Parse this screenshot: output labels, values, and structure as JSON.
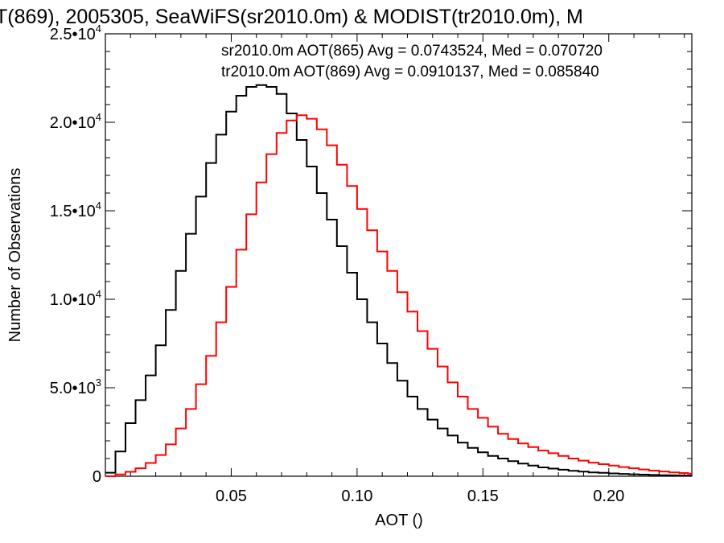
{
  "chart_data": {
    "type": "line",
    "title": "T(869), 2005305, SeaWiFS(sr2010.0m) & MODIST(tr2010.0m), M",
    "xlabel": "AOT ()",
    "ylabel": "Number of Observations",
    "xlim": [
      0.0,
      0.233
    ],
    "ylim": [
      0,
      25000
    ],
    "x_ticks": [
      "0.05",
      "0.10",
      "0.15",
      "0.20"
    ],
    "x_tick_values": [
      0.05,
      0.1,
      0.15,
      0.2
    ],
    "y_ticks": [
      {
        "value": 0,
        "mantissa": "0",
        "exponent": ""
      },
      {
        "value": 5000,
        "mantissa": "5.0•10",
        "exponent": "3"
      },
      {
        "value": 10000,
        "mantissa": "1.0•10",
        "exponent": "4"
      },
      {
        "value": 15000,
        "mantissa": "1.5•10",
        "exponent": "4"
      },
      {
        "value": 20000,
        "mantissa": "2.0•10",
        "exponent": "4"
      },
      {
        "value": 25000,
        "mantissa": "2.5•10",
        "exponent": "4"
      }
    ],
    "grid": false,
    "legend_position": "top-right",
    "series": [
      {
        "legend": "sr2010.0m AOT(865) Avg = 0.0743524, Med = 0.070720",
        "color": "#000000",
        "x": [
          0.002,
          0.006,
          0.01,
          0.014,
          0.018,
          0.022,
          0.026,
          0.03,
          0.034,
          0.038,
          0.042,
          0.046,
          0.05,
          0.054,
          0.058,
          0.062,
          0.066,
          0.07,
          0.074,
          0.078,
          0.082,
          0.086,
          0.09,
          0.094,
          0.098,
          0.102,
          0.106,
          0.11,
          0.114,
          0.118,
          0.122,
          0.126,
          0.13,
          0.134,
          0.138,
          0.142,
          0.146,
          0.15,
          0.154,
          0.158,
          0.162,
          0.166,
          0.17,
          0.174,
          0.178,
          0.182,
          0.186,
          0.19,
          0.194,
          0.198,
          0.202,
          0.206,
          0.21,
          0.214,
          0.218,
          0.222,
          0.226,
          0.23,
          0.233
        ],
        "y": [
          200,
          1400,
          3000,
          4300,
          5700,
          7400,
          9400,
          11600,
          13700,
          15800,
          17700,
          19300,
          20600,
          21500,
          22000,
          22100,
          22000,
          21600,
          20500,
          19000,
          17500,
          16000,
          14500,
          13000,
          11500,
          10000,
          8700,
          7500,
          6400,
          5400,
          4500,
          3800,
          3200,
          2700,
          2300,
          1900,
          1600,
          1350,
          1150,
          1000,
          850,
          720,
          600,
          500,
          430,
          370,
          310,
          260,
          220,
          190,
          160,
          130,
          110,
          90,
          75,
          60,
          50,
          40,
          30
        ]
      },
      {
        "legend": "tr2010.0m AOT(869) Avg = 0.0910137, Med = 0.085840",
        "color": "#ff0000",
        "x": [
          0.002,
          0.006,
          0.01,
          0.014,
          0.018,
          0.022,
          0.026,
          0.03,
          0.034,
          0.038,
          0.042,
          0.046,
          0.05,
          0.054,
          0.058,
          0.062,
          0.066,
          0.07,
          0.074,
          0.078,
          0.082,
          0.086,
          0.09,
          0.094,
          0.098,
          0.102,
          0.106,
          0.11,
          0.114,
          0.118,
          0.122,
          0.126,
          0.13,
          0.134,
          0.138,
          0.142,
          0.146,
          0.15,
          0.154,
          0.158,
          0.162,
          0.166,
          0.17,
          0.174,
          0.178,
          0.182,
          0.186,
          0.19,
          0.194,
          0.198,
          0.202,
          0.206,
          0.21,
          0.214,
          0.218,
          0.222,
          0.226,
          0.23,
          0.233
        ],
        "y": [
          0,
          100,
          250,
          450,
          750,
          1200,
          1800,
          2700,
          3800,
          5200,
          6800,
          8700,
          10700,
          12800,
          14800,
          16600,
          18200,
          19400,
          20100,
          20400,
          20200,
          19600,
          18700,
          17600,
          16400,
          15100,
          13900,
          12700,
          11600,
          10400,
          9300,
          8200,
          7200,
          6200,
          5300,
          4500,
          3800,
          3300,
          2800,
          2400,
          2100,
          1850,
          1650,
          1450,
          1300,
          1150,
          1000,
          880,
          770,
          680,
          600,
          520,
          450,
          380,
          320,
          270,
          220,
          180,
          150
        ]
      }
    ]
  }
}
